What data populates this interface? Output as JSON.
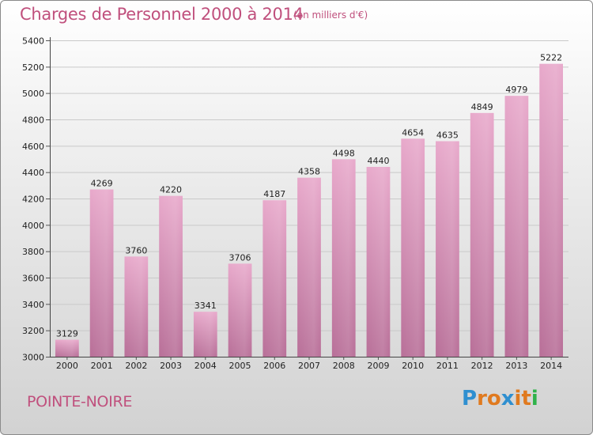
{
  "title": "Charges de Personnel 2000 à 2014",
  "subtitle": "(en milliers d'€)",
  "footer": {
    "city": "POINTE-NOIRE"
  },
  "logo": {
    "letters": [
      "P",
      "r",
      "o",
      "x",
      "i",
      "t",
      "i"
    ],
    "colors": [
      "#2f8fd0",
      "#e07a1f",
      "#e07a1f",
      "#2f8fd0",
      "#e07a1f",
      "#e07a1f",
      "#2fb24a"
    ]
  },
  "colors": {
    "bar": "#d98fb7",
    "title": "#c0507d"
  },
  "chart_data": {
    "type": "bar",
    "categories": [
      "2000",
      "2001",
      "2002",
      "2003",
      "2004",
      "2005",
      "2006",
      "2007",
      "2008",
      "2009",
      "2010",
      "2011",
      "2012",
      "2013",
      "2014"
    ],
    "values": [
      3129,
      4269,
      3760,
      4220,
      3341,
      3706,
      4187,
      4358,
      4498,
      4440,
      4654,
      4635,
      4849,
      4979,
      5222
    ],
    "yticks": [
      3000,
      3200,
      3400,
      3600,
      3800,
      4000,
      4200,
      4400,
      4600,
      4800,
      5000,
      5200,
      5400
    ],
    "ylim": [
      3000,
      5400
    ],
    "grid": true
  }
}
